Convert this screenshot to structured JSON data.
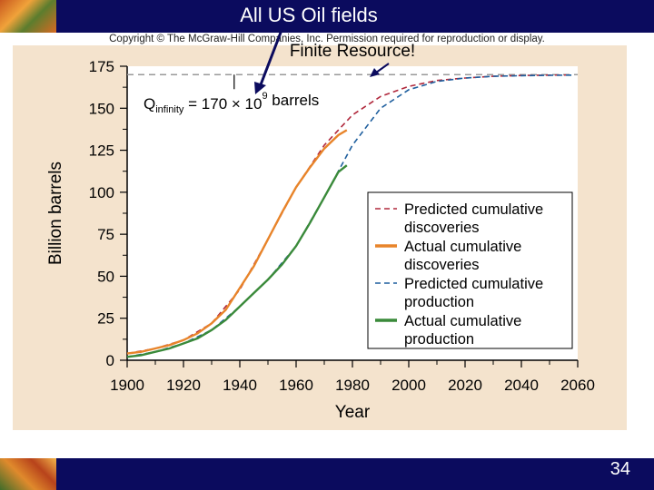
{
  "slide": {
    "title": "All US Oil fields",
    "annotation": "Finite Resource!",
    "copyright": "Copyright © The McGraw-Hill Companies, Inc. Permission required for reproduction or display.",
    "page_number": "34"
  },
  "colors": {
    "bar": "#0b0b5e",
    "panel": "#f4e3cd",
    "predicted_discoveries": "#b0283c",
    "actual_discoveries": "#e8842a",
    "predicted_production": "#1f5f9e",
    "actual_production": "#3a8a3a",
    "asymptote": "#999999"
  },
  "chart_data": {
    "type": "line",
    "xlabel": "Year",
    "ylabel": "Billion barrels",
    "xlim": [
      1900,
      2060
    ],
    "ylim": [
      0,
      175
    ],
    "xticks": [
      1900,
      1920,
      1940,
      1960,
      1980,
      2000,
      2020,
      2040,
      2060
    ],
    "yticks": [
      0,
      25,
      50,
      75,
      100,
      125,
      150,
      175
    ],
    "asymptote": {
      "value": 170,
      "label_main": "Q",
      "label_sub": "infinity",
      "label_rest": "= 170 × 10",
      "label_sup": "9",
      "label_end": " barrels"
    },
    "legend_position": "bottom-right",
    "series": [
      {
        "name": "Predicted cumulative discoveries",
        "style": "dashed",
        "x": [
          1900,
          1910,
          1920,
          1930,
          1940,
          1950,
          1960,
          1970,
          1980,
          1990,
          2000,
          2010,
          2020,
          2030,
          2040,
          2050,
          2058
        ],
        "y": [
          4,
          7,
          12,
          22,
          42,
          72,
          103,
          128,
          146,
          157,
          163,
          166.5,
          168,
          169,
          169.5,
          169.7,
          169.8
        ]
      },
      {
        "name": "Actual cumulative discoveries",
        "style": "solid",
        "x": [
          1900,
          1905,
          1910,
          1915,
          1920,
          1925,
          1930,
          1935,
          1940,
          1945,
          1950,
          1955,
          1960,
          1965,
          1970,
          1975,
          1978
        ],
        "y": [
          4,
          5,
          7,
          9,
          12,
          16,
          22,
          30,
          43,
          56,
          72,
          88,
          103,
          115,
          126,
          134,
          137
        ]
      },
      {
        "name": "Predicted cumulative production",
        "style": "dashed",
        "x": [
          1900,
          1910,
          1920,
          1930,
          1940,
          1950,
          1960,
          1970,
          1980,
          1990,
          2000,
          2010,
          2020,
          2030,
          2040,
          2050,
          2058
        ],
        "y": [
          2,
          5,
          10,
          18,
          32,
          48,
          68,
          97,
          128,
          150,
          161,
          166,
          168,
          169,
          169.4,
          169.6,
          169.7
        ]
      },
      {
        "name": "Actual cumulative production",
        "style": "solid",
        "x": [
          1900,
          1905,
          1910,
          1915,
          1920,
          1925,
          1930,
          1935,
          1940,
          1945,
          1950,
          1955,
          1960,
          1965,
          1970,
          1975,
          1978
        ],
        "y": [
          2,
          3,
          5,
          7,
          10,
          13,
          18,
          24,
          32,
          40,
          48,
          57,
          68,
          82,
          97,
          112,
          116
        ]
      }
    ]
  }
}
